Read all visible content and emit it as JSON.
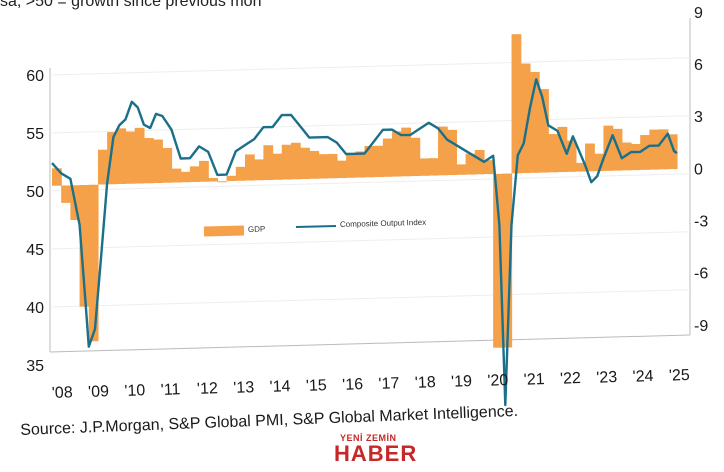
{
  "subtitle": "sa, >50 = growth since previous mon",
  "source": "Source: J.P.Morgan, S&P Global PMI, S&P Global Market Intelligence.",
  "watermark": {
    "top": "YENİ ZEMİN",
    "main": "HABER"
  },
  "colors": {
    "gdp": "#f4a14a",
    "pmi": "#1a6f8a",
    "axis": "#bbbbbb",
    "grid": "#eeeeee"
  },
  "chart_data": {
    "type": "bar",
    "legend_position": "center",
    "grid": true,
    "x_tick_labels": [
      "'08",
      "'09",
      "'10",
      "'11",
      "'12",
      "'13",
      "'14",
      "'15",
      "'16",
      "'17",
      "'18",
      "'19",
      "'20",
      "'21",
      "'22",
      "'23",
      "'24",
      "'25"
    ],
    "left_axis": {
      "ylim": [
        35,
        62
      ],
      "ticks": [
        35,
        40,
        45,
        50,
        55,
        60
      ]
    },
    "right_axis": {
      "ylim": [
        -10,
        9
      ],
      "ticks": [
        -9,
        -6,
        -3,
        0,
        3,
        6,
        9
      ]
    },
    "series": [
      {
        "name": "GDP",
        "type": "bar",
        "axis": "right",
        "quarters": [
          "2008Q1",
          "2008Q2",
          "2008Q3",
          "2008Q4",
          "2009Q1",
          "2009Q2",
          "2009Q3",
          "2009Q4",
          "2010Q1",
          "2010Q2",
          "2010Q3",
          "2010Q4",
          "2011Q1",
          "2011Q2",
          "2011Q3",
          "2011Q4",
          "2012Q1",
          "2012Q2",
          "2012Q3",
          "2012Q4",
          "2013Q1",
          "2013Q2",
          "2013Q3",
          "2013Q4",
          "2014Q1",
          "2014Q2",
          "2014Q3",
          "2014Q4",
          "2015Q1",
          "2015Q2",
          "2015Q3",
          "2015Q4",
          "2016Q1",
          "2016Q2",
          "2016Q3",
          "2016Q4",
          "2017Q1",
          "2017Q2",
          "2017Q3",
          "2017Q4",
          "2018Q1",
          "2018Q2",
          "2018Q3",
          "2018Q4",
          "2019Q1",
          "2019Q2",
          "2019Q3",
          "2019Q4",
          "2020Q1",
          "2020Q2",
          "2020Q3",
          "2020Q4",
          "2021Q1",
          "2021Q2",
          "2021Q3",
          "2021Q4",
          "2022Q1",
          "2022Q2",
          "2022Q3",
          "2022Q4",
          "2023Q1",
          "2023Q2",
          "2023Q3",
          "2023Q4",
          "2024Q1",
          "2024Q2",
          "2024Q3",
          "2024Q4"
        ],
        "values": [
          1.0,
          -1.0,
          -2.0,
          -7.0,
          -9.0,
          2.0,
          3.0,
          3.2,
          3.0,
          3.2,
          2.6,
          2.5,
          2.0,
          0.8,
          0.6,
          0.9,
          1.2,
          0.2,
          0.0,
          0.3,
          0.8,
          1.5,
          1.2,
          2.0,
          1.5,
          2.0,
          2.1,
          1.8,
          1.6,
          1.4,
          1.4,
          1.0,
          1.4,
          1.5,
          1.8,
          1.8,
          2.2,
          2.6,
          2.8,
          2.2,
          1.0,
          1.0,
          2.8,
          2.6,
          0.6,
          1.2,
          1.4,
          0.8,
          -10.0,
          -10.0,
          8.0,
          6.3,
          5.8,
          4.8,
          2.2,
          2.6,
          1.8,
          0.5,
          1.6,
          1.0,
          2.6,
          2.4,
          1.6,
          1.5,
          2.0,
          2.3,
          2.3,
          2.0
        ]
      },
      {
        "name": "Composite Output Index",
        "type": "line",
        "axis": "left",
        "points": [
          [
            2008.0,
            52.4
          ],
          [
            2008.25,
            51.5
          ],
          [
            2008.5,
            51.0
          ],
          [
            2008.75,
            47.0
          ],
          [
            2008.92,
            40.0
          ],
          [
            2009.0,
            36.5
          ],
          [
            2009.17,
            38.0
          ],
          [
            2009.33,
            44.0
          ],
          [
            2009.5,
            50.5
          ],
          [
            2009.67,
            54.5
          ],
          [
            2009.83,
            55.5
          ],
          [
            2010.0,
            56.0
          ],
          [
            2010.17,
            57.5
          ],
          [
            2010.33,
            57.0
          ],
          [
            2010.5,
            55.5
          ],
          [
            2010.67,
            55.2
          ],
          [
            2010.83,
            56.4
          ],
          [
            2011.0,
            56.2
          ],
          [
            2011.25,
            55.0
          ],
          [
            2011.5,
            52.5
          ],
          [
            2011.75,
            52.5
          ],
          [
            2012.0,
            53.5
          ],
          [
            2012.25,
            53.0
          ],
          [
            2012.5,
            51.0
          ],
          [
            2012.75,
            51.0
          ],
          [
            2013.0,
            53.0
          ],
          [
            2013.25,
            53.5
          ],
          [
            2013.5,
            54.0
          ],
          [
            2013.75,
            55.0
          ],
          [
            2014.0,
            55.0
          ],
          [
            2014.25,
            56.0
          ],
          [
            2014.5,
            56.0
          ],
          [
            2014.75,
            55.0
          ],
          [
            2015.0,
            54.0
          ],
          [
            2015.25,
            54.0
          ],
          [
            2015.5,
            54.0
          ],
          [
            2015.75,
            53.5
          ],
          [
            2016.0,
            52.5
          ],
          [
            2016.25,
            52.5
          ],
          [
            2016.5,
            52.5
          ],
          [
            2016.75,
            53.5
          ],
          [
            2017.0,
            54.5
          ],
          [
            2017.25,
            54.5
          ],
          [
            2017.5,
            54.0
          ],
          [
            2017.75,
            54.0
          ],
          [
            2018.0,
            54.5
          ],
          [
            2018.25,
            55.0
          ],
          [
            2018.5,
            54.5
          ],
          [
            2018.75,
            53.5
          ],
          [
            2019.0,
            53.0
          ],
          [
            2019.25,
            52.5
          ],
          [
            2019.5,
            52.0
          ],
          [
            2019.75,
            51.5
          ],
          [
            2020.0,
            52.0
          ],
          [
            2020.17,
            46.0
          ],
          [
            2020.33,
            30.5
          ],
          [
            2020.5,
            46.0
          ],
          [
            2020.67,
            52.0
          ],
          [
            2020.83,
            53.0
          ],
          [
            2021.0,
            56.0
          ],
          [
            2021.17,
            58.5
          ],
          [
            2021.33,
            57.0
          ],
          [
            2021.5,
            54.5
          ],
          [
            2021.75,
            54.0
          ],
          [
            2022.0,
            52.0
          ],
          [
            2022.17,
            53.5
          ],
          [
            2022.5,
            51.0
          ],
          [
            2022.67,
            49.5
          ],
          [
            2022.83,
            50.0
          ],
          [
            2023.0,
            51.5
          ],
          [
            2023.25,
            53.5
          ],
          [
            2023.5,
            51.5
          ],
          [
            2023.75,
            52.0
          ],
          [
            2024.0,
            52.0
          ],
          [
            2024.25,
            52.5
          ],
          [
            2024.5,
            52.5
          ],
          [
            2024.75,
            53.5
          ],
          [
            2024.92,
            52.0
          ],
          [
            2025.0,
            51.8
          ]
        ]
      }
    ]
  }
}
